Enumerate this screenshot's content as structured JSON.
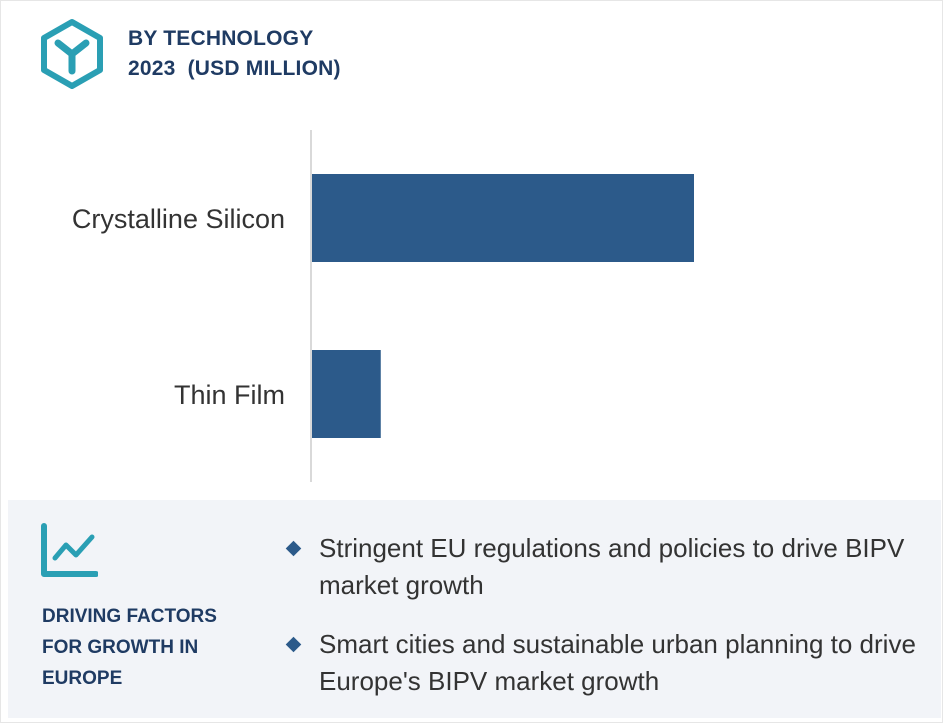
{
  "header": {
    "line1": "BY TECHNOLOGY",
    "line2": "2023  (USD MILLION)",
    "logo_icon": "hexagon-y-icon"
  },
  "chart_data": {
    "type": "bar",
    "orientation": "horizontal",
    "categories": [
      "Crystalline Silicon",
      "Thin Film"
    ],
    "values": [
      100,
      18
    ],
    "bar_color": "#2c5a8a",
    "xlabel": "",
    "ylabel": "",
    "grid": false
  },
  "drivers": {
    "icon": "trend-chart-icon",
    "title_lines": [
      "DRIVING FACTORS",
      "FOR GROWTH IN",
      "EUROPE"
    ],
    "items": [
      "Stringent EU regulations and policies to drive BIPV market growth",
      "Smart cities and sustainable urban planning to drive Europe's BIPV market growth"
    ]
  },
  "colors": {
    "accent": "#2a9fb4",
    "title": "#1f3b63",
    "bar": "#2c5a8a",
    "panel": "#f2f4f8"
  }
}
